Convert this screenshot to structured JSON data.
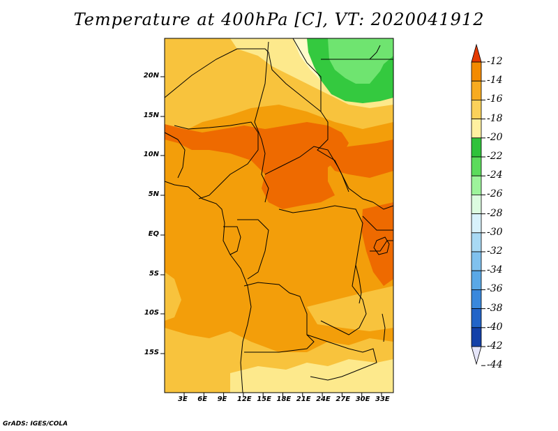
{
  "title": "Temperature at 400hPa [C], VT: 2020041912",
  "credit": "GrADS: IGES/COLA",
  "map": {
    "lat_labels": [
      "20N",
      "15N",
      "10N",
      "5N",
      "EQ",
      "5S",
      "10S",
      "15S"
    ],
    "lon_labels": [
      "3E",
      "6E",
      "9E",
      "12E",
      "15E",
      "18E",
      "21E",
      "24E",
      "27E",
      "30E",
      "33E"
    ],
    "colors": {
      "c_m14": "#ee6a00",
      "c_m16": "#f39e0a",
      "c_m18": "#f8c33d",
      "c_m20": "#fde98c",
      "c_m22": "#fffbca",
      "c_m24": "#34c93f",
      "c_m26": "#6fe470"
    }
  },
  "colorbar": {
    "labels": [
      "-12",
      "-14",
      "-16",
      "-18",
      "-20",
      "-22",
      "-24",
      "-26",
      "-28",
      "-30",
      "-32",
      "-34",
      "-36",
      "-38",
      "-40",
      "-42",
      "-44"
    ],
    "colors": [
      "#ee5a00",
      "#f38a00",
      "#f7ab20",
      "#fbd15a",
      "#fff0a0",
      "#2fc23b",
      "#5cdb5c",
      "#9df39b",
      "#dcfbe0",
      "#d8f1fb",
      "#a8d9f4",
      "#80c1ee",
      "#5aa8e6",
      "#3a88dc",
      "#2264c8",
      "#1340a8",
      "#06197a"
    ],
    "top_arrow_color": "#e43a00",
    "bottom_arrow_color": "#e6e6fa"
  }
}
